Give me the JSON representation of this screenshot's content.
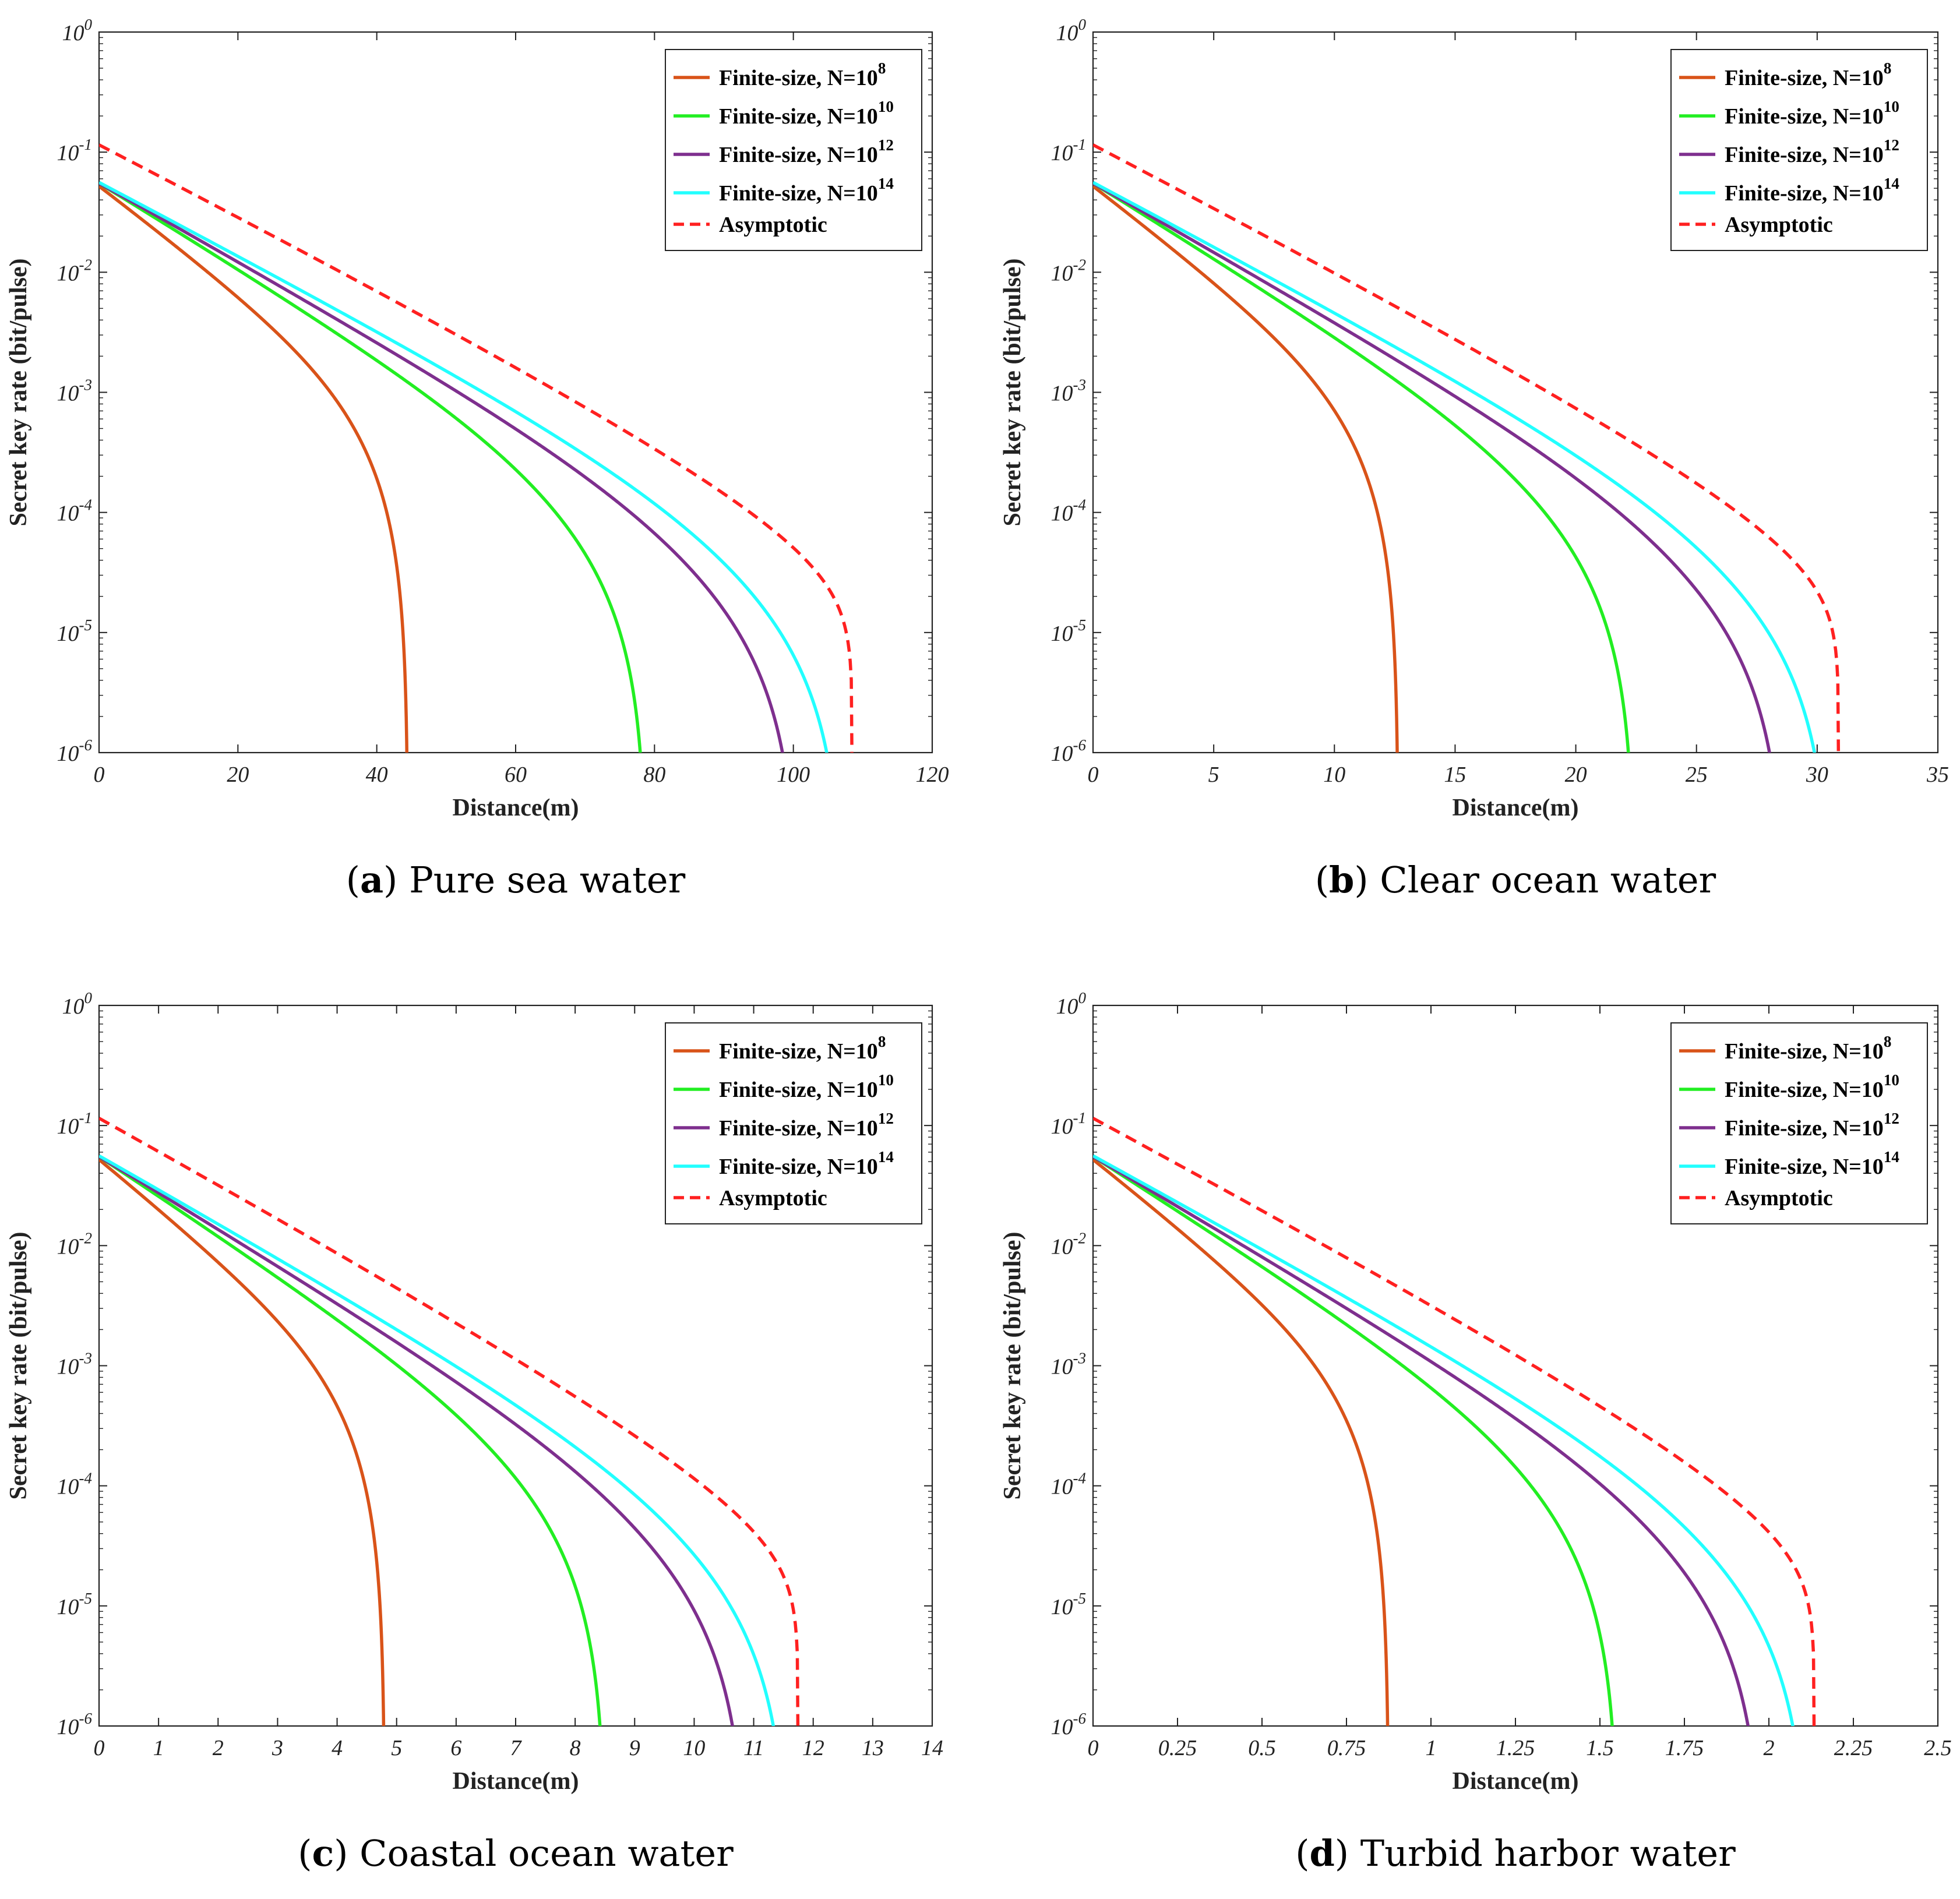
{
  "colors": {
    "N8": "#D95319",
    "N10": "#22EE22",
    "N12": "#7E2F8E",
    "N14": "#22FFFF",
    "asymptotic": "#FF2020"
  },
  "legend": {
    "prefix": "Finite-size, N=10",
    "exponents": [
      "8",
      "10",
      "12",
      "14"
    ],
    "asymptotic": "Asymptotic"
  },
  "chart_data": [
    {
      "type": "line",
      "title": "Pure sea water",
      "caption_letter": "a",
      "xlabel": "Distance(m)",
      "ylabel": "Secret key rate (bit/pulse)",
      "yscale": "log",
      "xlim": [
        0,
        120
      ],
      "ylim": [
        1e-06,
        1
      ],
      "xticks": [
        0,
        20,
        40,
        60,
        80,
        100,
        120
      ],
      "xtick_labels": [
        "0",
        "20",
        "40",
        "60",
        "80",
        "100",
        "120"
      ],
      "yticks_exponents": [
        0,
        -1,
        -2,
        -3,
        -4,
        -5,
        -6
      ],
      "legend_position": "top-right",
      "series": [
        {
          "name": "Finite-size, N=10^8",
          "cutoff": 44.5,
          "start": 0.052
        },
        {
          "name": "Finite-size, N=10^10",
          "cutoff": 78.9,
          "start": 0.055
        },
        {
          "name": "Finite-size, N=10^12",
          "cutoff": 100.8,
          "start": 0.055
        },
        {
          "name": "Finite-size, N=10^14",
          "cutoff": 107.3,
          "start": 0.056
        },
        {
          "name": "Asymptotic",
          "cutoff": 108.5,
          "start": 0.115
        }
      ]
    },
    {
      "type": "line",
      "title": "Clear ocean water",
      "caption_letter": "b",
      "xlabel": "Distance(m)",
      "ylabel": "Secret key rate (bit/pulse)",
      "yscale": "log",
      "xlim": [
        0,
        35
      ],
      "ylim": [
        1e-06,
        1
      ],
      "xticks": [
        0,
        5,
        10,
        15,
        20,
        25,
        30,
        35
      ],
      "xtick_labels": [
        "0",
        "5",
        "10",
        "15",
        "20",
        "25",
        "30",
        "35"
      ],
      "yticks_exponents": [
        0,
        -1,
        -2,
        -3,
        -4,
        -5,
        -6
      ],
      "legend_position": "top-right",
      "series": [
        {
          "name": "Finite-size, N=10^8",
          "cutoff": 12.65,
          "start": 0.052
        },
        {
          "name": "Finite-size, N=10^10",
          "cutoff": 22.45,
          "start": 0.055
        },
        {
          "name": "Finite-size, N=10^12",
          "cutoff": 28.7,
          "start": 0.055
        },
        {
          "name": "Finite-size, N=10^14",
          "cutoff": 30.6,
          "start": 0.056
        },
        {
          "name": "Asymptotic",
          "cutoff": 30.9,
          "start": 0.115
        }
      ]
    },
    {
      "type": "line",
      "title": "Coastal ocean water",
      "caption_letter": "c",
      "xlabel": "Distance(m)",
      "ylabel": "Secret key rate (bit/pulse)",
      "yscale": "log",
      "xlim": [
        0,
        14
      ],
      "ylim": [
        1e-06,
        1
      ],
      "xticks": [
        0,
        1,
        2,
        3,
        4,
        5,
        6,
        7,
        8,
        9,
        10,
        11,
        12,
        13,
        14
      ],
      "xtick_labels": [
        "0",
        "1",
        "2",
        "3",
        "4",
        "5",
        "6",
        "7",
        "8",
        "9",
        "10",
        "11",
        "12",
        "13",
        "14"
      ],
      "yticks_exponents": [
        0,
        -1,
        -2,
        -3,
        -4,
        -5,
        -6
      ],
      "legend_position": "top-right",
      "series": [
        {
          "name": "Finite-size, N=10^8",
          "cutoff": 4.8,
          "start": 0.052
        },
        {
          "name": "Finite-size, N=10^10",
          "cutoff": 8.52,
          "start": 0.055
        },
        {
          "name": "Finite-size, N=10^12",
          "cutoff": 10.9,
          "start": 0.055
        },
        {
          "name": "Finite-size, N=10^14",
          "cutoff": 11.6,
          "start": 0.056
        },
        {
          "name": "Asymptotic",
          "cutoff": 11.75,
          "start": 0.115
        }
      ]
    },
    {
      "type": "line",
      "title": "Turbid harbor water",
      "caption_letter": "d",
      "xlabel": "Distance(m)",
      "ylabel": "Secret key rate (bit/pulse)",
      "yscale": "log",
      "xlim": [
        0,
        2.5
      ],
      "ylim": [
        1e-06,
        1
      ],
      "xticks": [
        0,
        0.25,
        0.5,
        0.75,
        1,
        1.25,
        1.5,
        1.75,
        2,
        2.25,
        2.5
      ],
      "xtick_labels": [
        "0",
        "0.25",
        "0.5",
        "0.75",
        "1",
        "1.25",
        "1.5",
        "1.75",
        "2",
        "2.25",
        "2.5"
      ],
      "yticks_exponents": [
        0,
        -1,
        -2,
        -3,
        -4,
        -5,
        -6
      ],
      "legend_position": "top-right",
      "series": [
        {
          "name": "Finite-size, N=10^8",
          "cutoff": 0.875,
          "start": 0.052
        },
        {
          "name": "Finite-size, N=10^10",
          "cutoff": 1.555,
          "start": 0.055
        },
        {
          "name": "Finite-size, N=10^12",
          "cutoff": 1.985,
          "start": 0.055
        },
        {
          "name": "Finite-size, N=10^14",
          "cutoff": 2.12,
          "start": 0.056
        },
        {
          "name": "Asymptotic",
          "cutoff": 2.135,
          "start": 0.115
        }
      ]
    }
  ]
}
